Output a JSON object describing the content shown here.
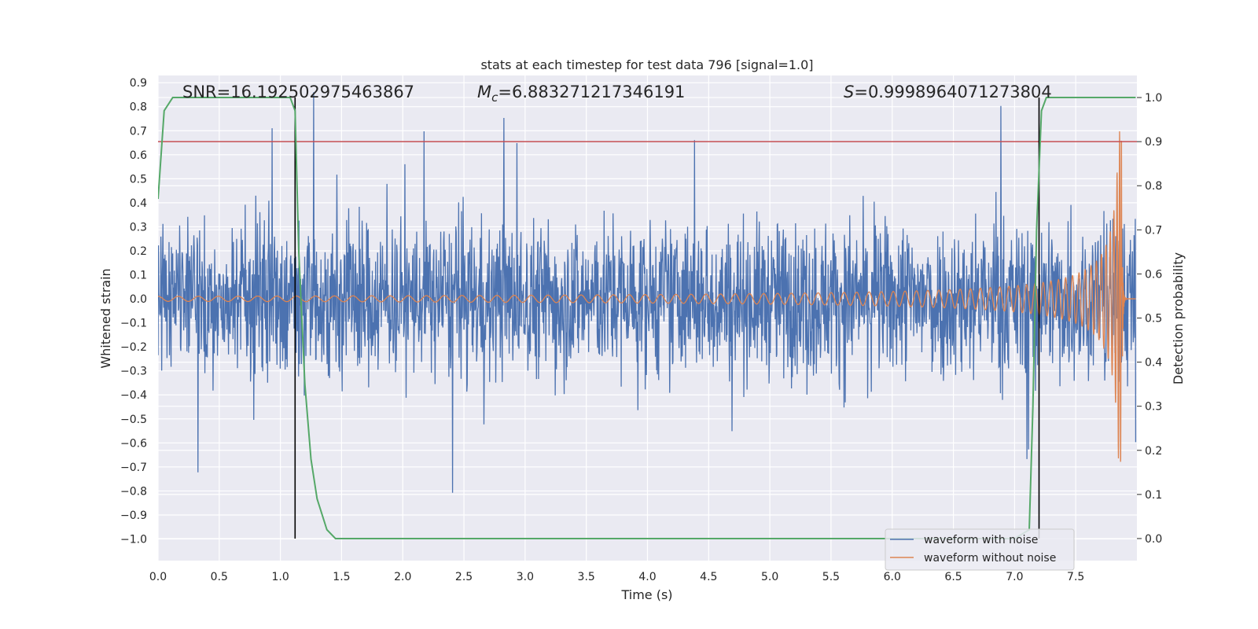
{
  "chart_data": {
    "type": "line",
    "title": "stats at each timestep for test data 796 [signal=1.0]",
    "xlabel": "Time (s)",
    "ylabel_left": "Whitened strain",
    "ylabel_right": "Detection probability",
    "xlim": [
      0.0,
      8.0
    ],
    "ylim_left": [
      -1.09,
      0.93
    ],
    "ylim_right": [
      -0.05,
      1.05
    ],
    "x_ticks": [
      "0.0",
      "0.5",
      "1.0",
      "1.5",
      "2.0",
      "2.5",
      "3.0",
      "3.5",
      "4.0",
      "4.5",
      "5.0",
      "5.5",
      "6.0",
      "6.5",
      "7.0",
      "7.5"
    ],
    "x_tick_values": [
      0.0,
      0.5,
      1.0,
      1.5,
      2.0,
      2.5,
      3.0,
      3.5,
      4.0,
      4.5,
      5.0,
      5.5,
      6.0,
      6.5,
      7.0,
      7.5
    ],
    "y_ticks_left": [
      "0.9",
      "0.8",
      "0.7",
      "0.6",
      "0.5",
      "0.4",
      "0.3",
      "0.2",
      "0.1",
      "0.0",
      "−0.1",
      "−0.2",
      "−0.3",
      "−0.4",
      "−0.5",
      "−0.6",
      "−0.7",
      "−0.8",
      "−0.9",
      "−1.0"
    ],
    "y_tick_values_left": [
      0.9,
      0.8,
      0.7,
      0.6,
      0.5,
      0.4,
      0.3,
      0.2,
      0.1,
      0.0,
      -0.1,
      -0.2,
      -0.3,
      -0.4,
      -0.5,
      -0.6,
      -0.7,
      -0.8,
      -0.9,
      -1.0
    ],
    "y_ticks_right": [
      "1.0",
      "0.9",
      "0.8",
      "0.7",
      "0.6",
      "0.5",
      "0.4",
      "0.3",
      "0.2",
      "0.1",
      "0.0"
    ],
    "y_tick_values_right": [
      1.0,
      0.9,
      0.8,
      0.7,
      0.6,
      0.5,
      0.4,
      0.3,
      0.2,
      0.1,
      0.0
    ],
    "annotations": {
      "snr": "SNR=16.192502975463867",
      "mc_symbol": "M",
      "mc_sub": "c",
      "mc_value": "=6.883271217346191",
      "s_symbol": "S",
      "s_value": "=0.9998964071273804"
    },
    "threshold_right": 0.9,
    "vertical_lines_x": [
      1.12,
      7.2
    ],
    "series": [
      {
        "name": "waveform with noise",
        "color": "#4c72b0",
        "axis": "left",
        "description": "noisy whitened strain, envelope roughly ±0.3 with peaks to ±0.85"
      },
      {
        "name": "waveform without noise",
        "color": "#dd8452",
        "axis": "left",
        "description": "chirp signal growing from amplitude ~0.01 at t=0 to ~0.7 at merger t≈7.88 s, then ringdown to 0"
      },
      {
        "name": "detection probability",
        "color": "#55a868",
        "axis": "right",
        "x": [
          0.0,
          0.05,
          0.12,
          0.5,
          1.0,
          1.08,
          1.12,
          1.15,
          1.2,
          1.25,
          1.3,
          1.38,
          1.45,
          2.0,
          4.0,
          6.0,
          7.0,
          7.12,
          7.15,
          7.18,
          7.22,
          7.26,
          7.35,
          7.5,
          7.8,
          7.99
        ],
        "values": [
          0.77,
          0.97,
          1.0,
          1.0,
          1.0,
          1.0,
          0.97,
          0.65,
          0.35,
          0.18,
          0.09,
          0.02,
          0.0,
          0.0,
          0.0,
          0.0,
          0.0,
          0.02,
          0.3,
          0.7,
          0.97,
          1.0,
          1.0,
          1.0,
          1.0,
          1.0
        ]
      }
    ],
    "threshold_color": "#c44e52",
    "legend_position": "lower right",
    "legend": [
      "waveform with noise",
      "waveform without noise"
    ]
  }
}
